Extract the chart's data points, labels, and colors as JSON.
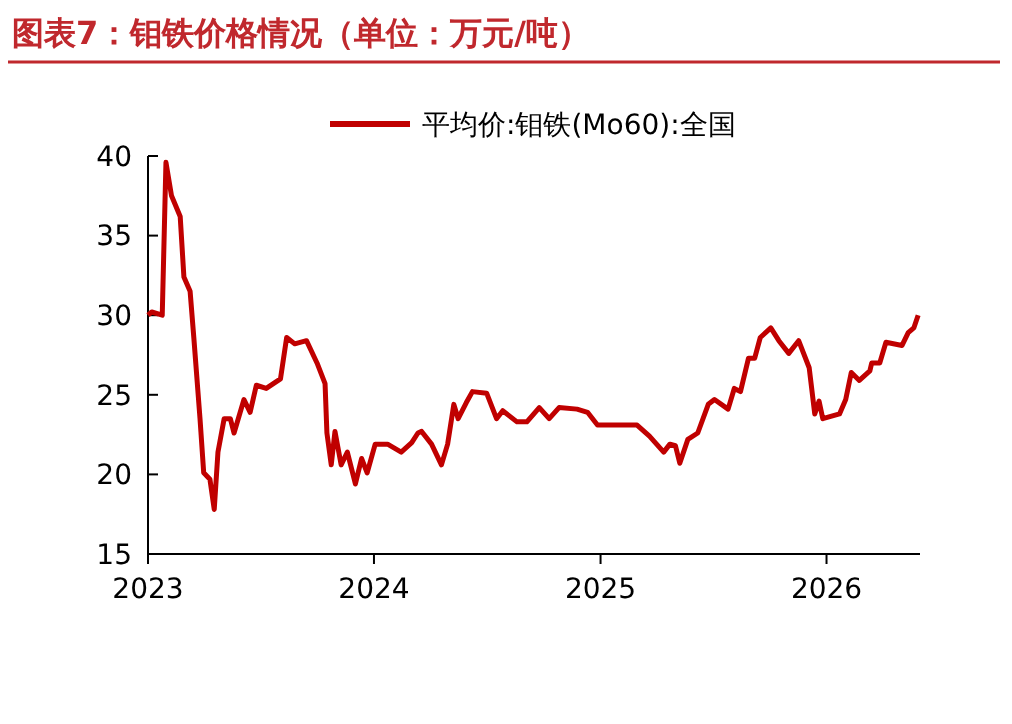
{
  "chart_data": {
    "type": "line",
    "title": "图表7：钼铁价格情况（单位：万元/吨）",
    "x": [
      "2023-01-01",
      "2023-01-07",
      "2023-01-24",
      "2023-01-30",
      "2023-02-08",
      "2023-02-22",
      "2023-02-28",
      "2023-03-10",
      "2023-03-16",
      "2023-03-26",
      "2023-04-01",
      "2023-04-11",
      "2023-04-18",
      "2023-04-24",
      "2023-05-04",
      "2023-05-14",
      "2023-05-20",
      "2023-06-05",
      "2023-06-15",
      "2023-06-25",
      "2023-07-11",
      "2023-08-03",
      "2023-08-13",
      "2023-08-26",
      "2023-09-14",
      "2023-10-01",
      "2023-10-14",
      "2023-10-17",
      "2023-10-24",
      "2023-10-30",
      "2023-11-09",
      "2023-11-19",
      "2023-12-02",
      "2023-12-12",
      "2023-12-21",
      "2024-01-03",
      "2024-01-23",
      "2024-02-14",
      "2024-03-02",
      "2024-03-12",
      "2024-03-18",
      "2024-04-03",
      "2024-04-19",
      "2024-04-29",
      "2024-05-09",
      "2024-05-16",
      "2024-05-29",
      "2024-06-08",
      "2024-07-01",
      "2024-07-17",
      "2024-07-27",
      "2024-08-19",
      "2024-09-04",
      "2024-09-24",
      "2024-10-10",
      "2024-10-26",
      "2024-11-24",
      "2024-12-11",
      "2024-12-27",
      "2025-03-01",
      "2025-03-21",
      "2025-04-13",
      "2025-04-23",
      "2025-05-02",
      "2025-05-09",
      "2025-05-22",
      "2025-06-07",
      "2025-06-24",
      "2025-07-04",
      "2025-07-26",
      "2025-08-05",
      "2025-08-15",
      "2025-08-28",
      "2025-09-07",
      "2025-09-16",
      "2025-10-03",
      "2025-10-16",
      "2025-11-01",
      "2025-11-17",
      "2025-12-04",
      "2025-12-13",
      "2025-12-20",
      "2025-12-26",
      "2026-01-22",
      "2026-02-01",
      "2026-02-10",
      "2026-02-23",
      "2026-03-12",
      "2026-03-15",
      "2026-03-28",
      "2026-04-07",
      "2026-05-03",
      "2026-05-13",
      "2026-05-22",
      "2026-05-29"
    ],
    "series": [
      {
        "name": "平均价:钼铁(Mo60):全国",
        "color": "#c00000",
        "values": [
          30,
          30.2,
          30,
          39.6,
          37.5,
          36.2,
          32.4,
          31.5,
          28.6,
          23.5,
          20.1,
          19.7,
          17.8,
          21.4,
          23.5,
          23.5,
          22.6,
          24.7,
          23.9,
          25.6,
          25.4,
          26,
          28.6,
          28.2,
          28.4,
          27,
          25.7,
          22.6,
          20.6,
          22.7,
          20.6,
          21.4,
          19.4,
          21,
          20.1,
          21.9,
          21.9,
          21.4,
          22,
          22.6,
          22.7,
          21.9,
          20.6,
          21.9,
          24.4,
          23.5,
          24.5,
          25.2,
          25.1,
          23.5,
          24,
          23.3,
          23.3,
          24.2,
          23.5,
          24.2,
          24.1,
          23.9,
          23.1,
          23.1,
          22.4,
          21.4,
          21.9,
          21.8,
          20.7,
          22.2,
          22.6,
          24.4,
          24.7,
          24.1,
          25.4,
          25.2,
          27.3,
          27.3,
          28.6,
          29.2,
          28.4,
          27.6,
          28.4,
          26.7,
          23.8,
          24.6,
          23.5,
          23.8,
          24.7,
          26.4,
          25.9,
          26.5,
          27,
          27,
          28.3,
          28.1,
          28.9,
          29.2,
          30
        ]
      }
    ],
    "xlim": [
      "2023-01-01",
      "2026-06-01"
    ],
    "xticks": [
      {
        "value": "2023-01-01",
        "label": "2023"
      },
      {
        "value": "2024-01-01",
        "label": "2024"
      },
      {
        "value": "2025-01-01",
        "label": "2025"
      },
      {
        "value": "2026-01-01",
        "label": "2026"
      }
    ],
    "ylim": [
      15,
      40
    ],
    "yticks": [
      15,
      20,
      25,
      30,
      35,
      40
    ],
    "legend": "top",
    "grid": false,
    "marker": "none",
    "line_style": "solid"
  }
}
